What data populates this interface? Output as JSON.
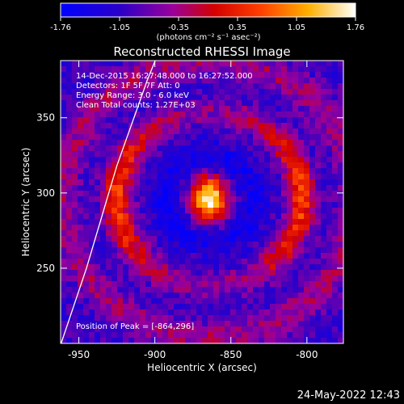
{
  "colorbar": {
    "ticks": [
      "-1.76",
      "-1.05",
      "-0.35",
      "0.35",
      "1.05",
      "1.76"
    ],
    "units_label": "(photons cm⁻² s⁻¹ asec⁻²)"
  },
  "footer": {
    "date": "24-May-2022 12:43"
  },
  "chart_data": {
    "type": "heatmap",
    "title": "Reconstructed RHESSI Image",
    "xlabel": "Heliocentric X (arcsec)",
    "ylabel": "Heliocentric Y (arcsec)",
    "xlim": [
      -962,
      -776
    ],
    "ylim": [
      200,
      388
    ],
    "xticks": [
      {
        "value": -950,
        "label": "-950"
      },
      {
        "value": -900,
        "label": "-900"
      },
      {
        "value": -850,
        "label": "-850"
      },
      {
        "value": -800,
        "label": "-800"
      }
    ],
    "yticks": [
      {
        "value": 250,
        "label": "250"
      },
      {
        "value": 300,
        "label": "300"
      },
      {
        "value": 350,
        "label": "350"
      }
    ],
    "colorbar_range": [
      -1.76,
      1.76
    ],
    "annotations": [
      "14-Dec-2015 16:27:48.000 to 16:27:52.000",
      "Detectors: 1F 5F 7F Att: 0",
      "Energy Range: 3.0 - 6.0 keV",
      "Clean    Total counts: 1.27E+03"
    ],
    "peak_label": "Position of Peak = [-864,296]",
    "peak": {
      "x": -864,
      "y": 296
    },
    "limb": [
      [
        -965,
        190
      ],
      [
        -945,
        250
      ],
      [
        -925,
        318
      ],
      [
        -905,
        375
      ],
      [
        -895,
        400
      ]
    ]
  }
}
